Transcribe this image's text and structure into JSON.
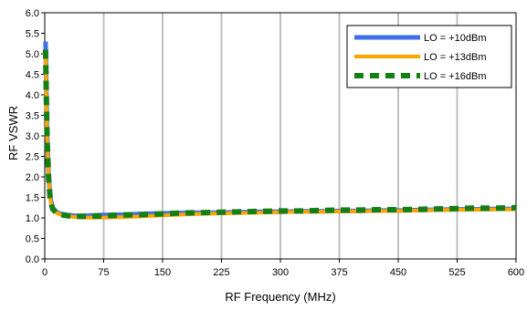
{
  "chart_data": {
    "type": "line",
    "title": "",
    "xlabel": "RF Frequency (MHz)",
    "ylabel": "RF VSWR",
    "xlim": [
      0,
      600
    ],
    "ylim": [
      0,
      6
    ],
    "xticks": [
      "0",
      "75",
      "150",
      "225",
      "300",
      "375",
      "450",
      "525",
      "600"
    ],
    "yticks": [
      "0.0",
      "0.5",
      "1.0",
      "1.5",
      "2.0",
      "2.5",
      "3.0",
      "3.5",
      "4.0",
      "4.5",
      "5.0",
      "5.5",
      "6.0"
    ],
    "grid": "vertical",
    "legend_position": "top-right",
    "x": [
      1,
      2,
      3,
      5,
      7,
      10,
      15,
      20,
      30,
      40,
      50,
      60,
      75,
      100,
      125,
      150,
      175,
      200,
      225,
      250,
      275,
      300,
      325,
      350,
      375,
      400,
      425,
      450,
      475,
      500,
      525,
      550,
      575,
      600
    ],
    "series": [
      {
        "name": "LO = +10dBm",
        "color": "#3f6fe8",
        "style": "solid",
        "values": [
          5.3,
          4.2,
          3.0,
          2.0,
          1.5,
          1.25,
          1.14,
          1.1,
          1.07,
          1.05,
          1.05,
          1.06,
          1.07,
          1.08,
          1.1,
          1.11,
          1.12,
          1.13,
          1.13,
          1.14,
          1.15,
          1.15,
          1.16,
          1.16,
          1.17,
          1.17,
          1.18,
          1.18,
          1.19,
          1.2,
          1.21,
          1.21,
          1.22,
          1.22
        ]
      },
      {
        "name": "LO = +13dBm",
        "color": "#ffa500",
        "style": "solid",
        "values": [
          5.0,
          4.0,
          2.9,
          1.95,
          1.45,
          1.22,
          1.12,
          1.08,
          1.04,
          1.02,
          1.01,
          1.01,
          1.01,
          1.02,
          1.04,
          1.06,
          1.08,
          1.1,
          1.11,
          1.12,
          1.13,
          1.14,
          1.15,
          1.15,
          1.16,
          1.16,
          1.17,
          1.17,
          1.18,
          1.19,
          1.2,
          1.2,
          1.21,
          1.21
        ]
      },
      {
        "name": "LO = +16dBm",
        "color": "#157f15",
        "style": "dashed",
        "values": [
          5.1,
          4.0,
          2.9,
          1.95,
          1.45,
          1.22,
          1.12,
          1.08,
          1.05,
          1.04,
          1.04,
          1.04,
          1.05,
          1.07,
          1.08,
          1.1,
          1.12,
          1.13,
          1.14,
          1.15,
          1.16,
          1.17,
          1.17,
          1.18,
          1.19,
          1.19,
          1.2,
          1.2,
          1.21,
          1.22,
          1.23,
          1.24,
          1.24,
          1.25
        ]
      }
    ]
  }
}
